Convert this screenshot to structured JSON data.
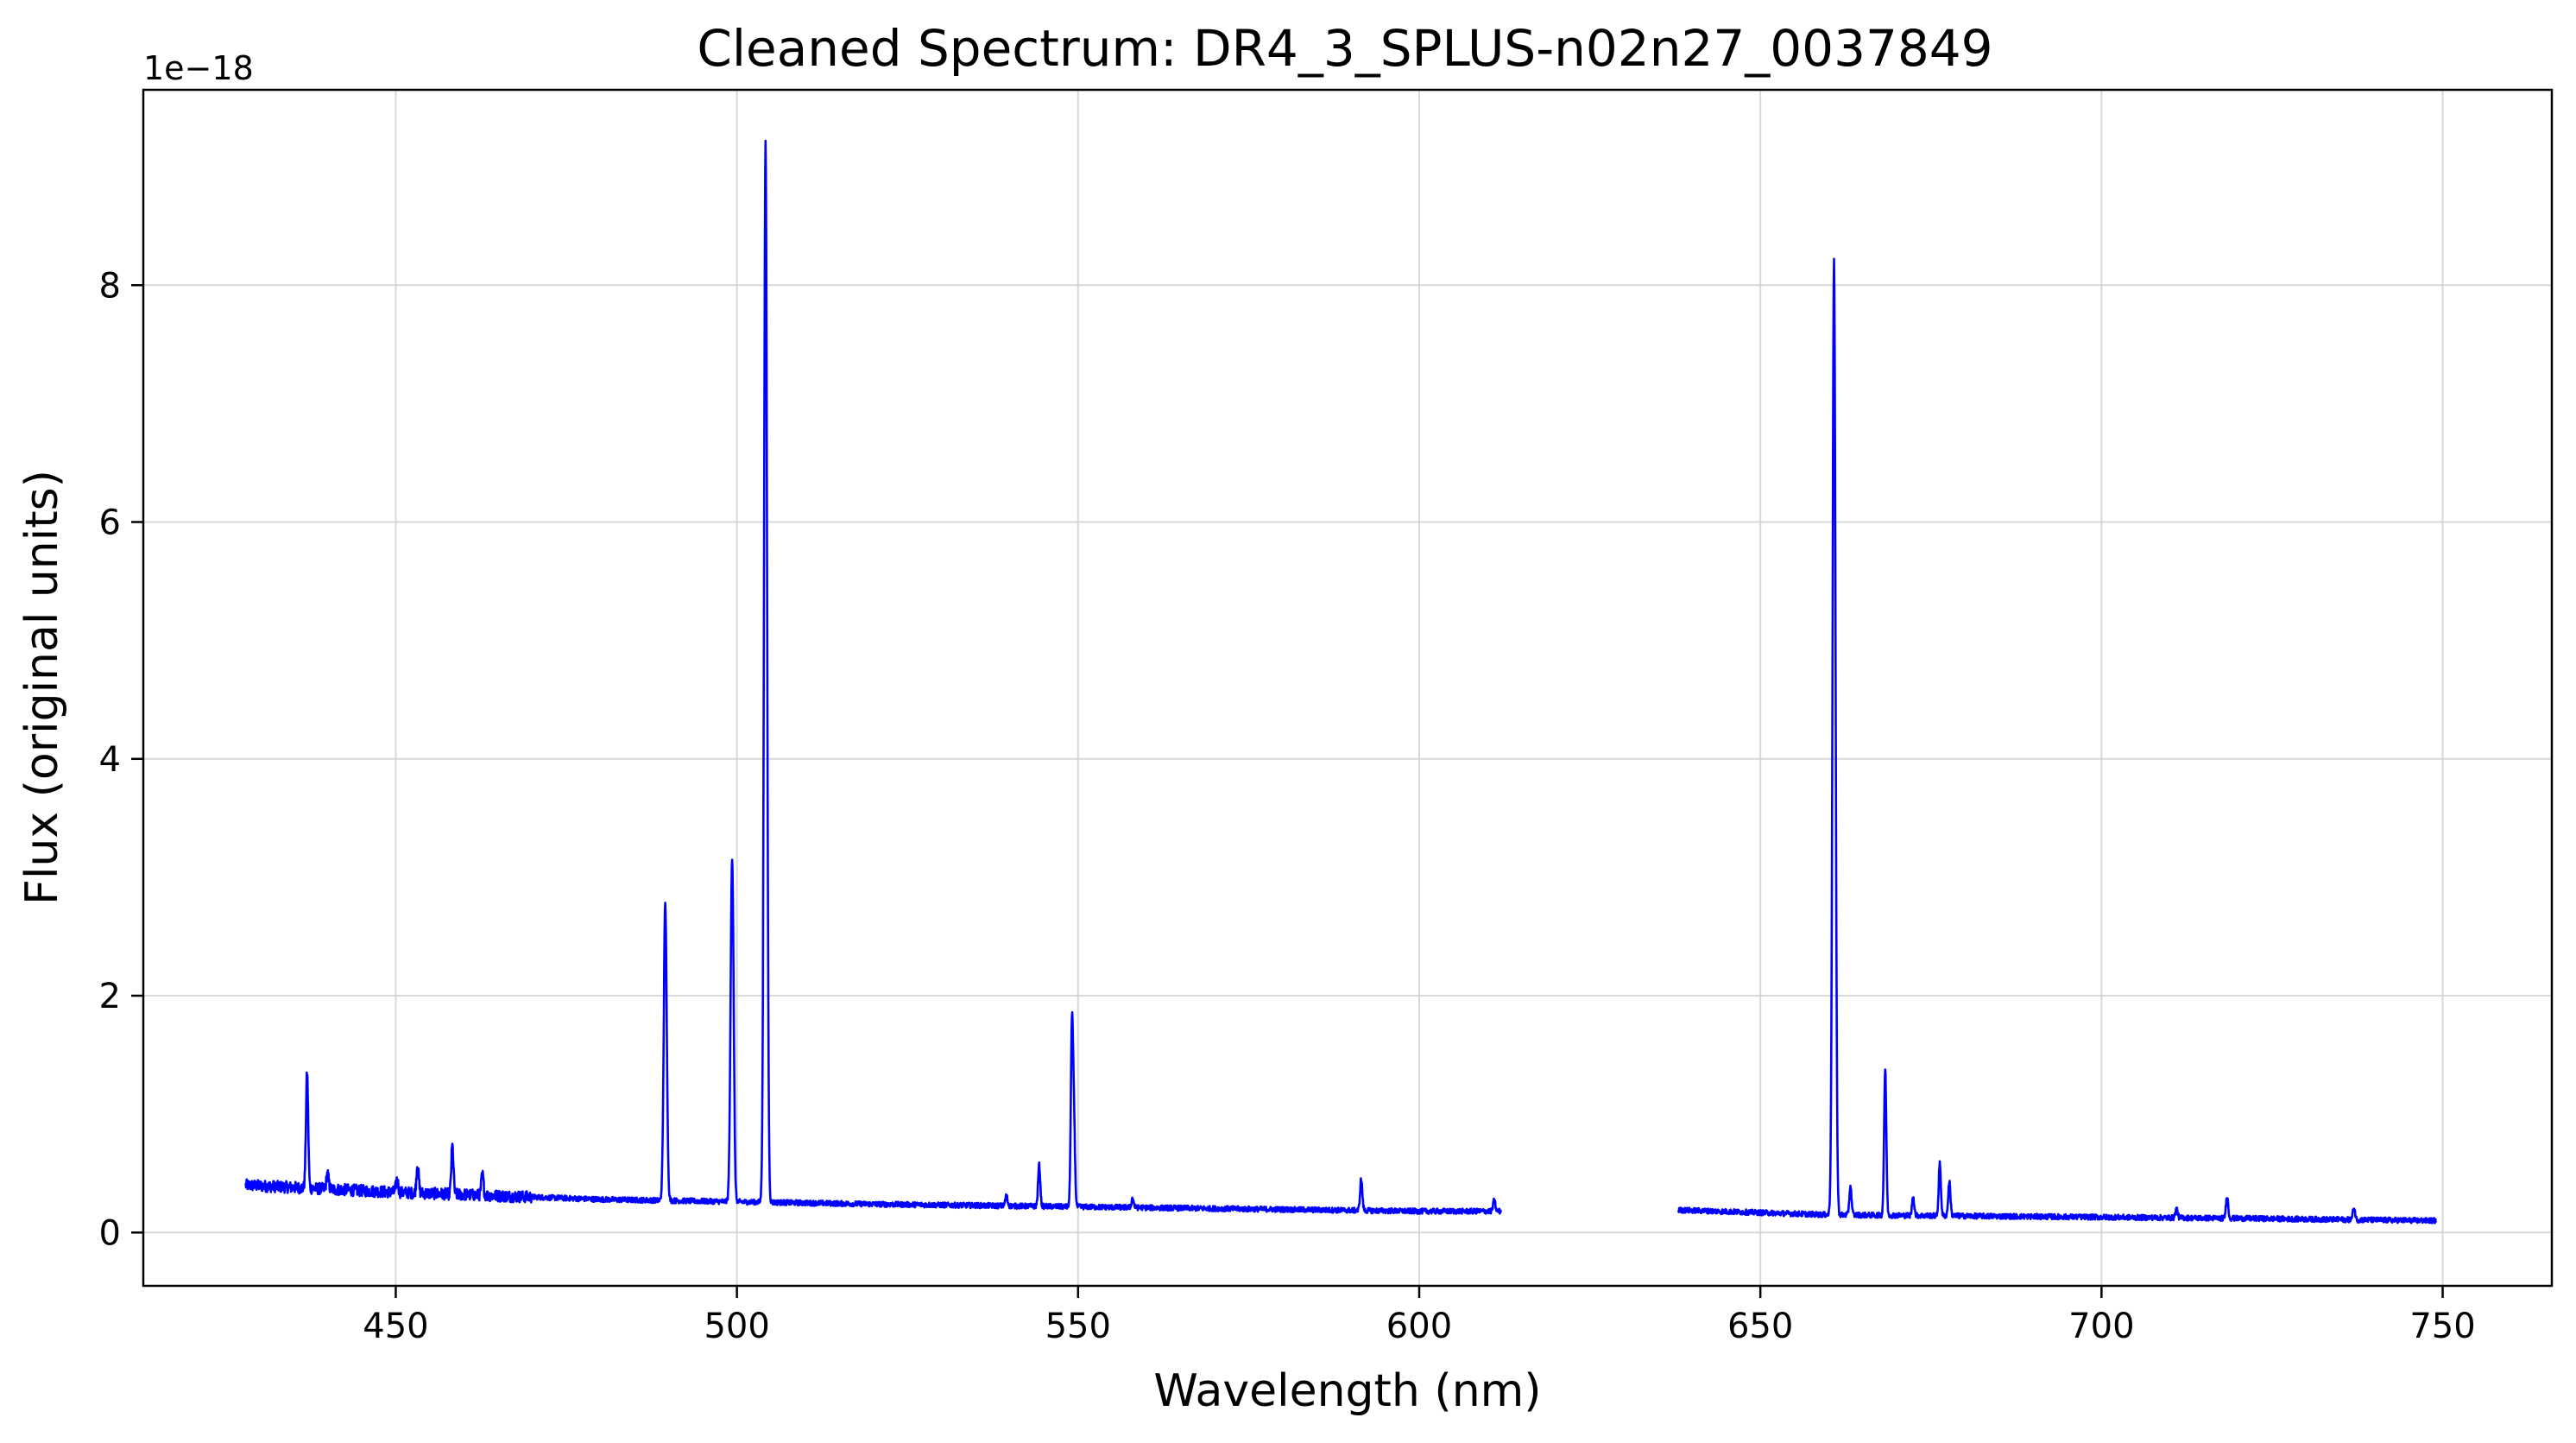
{
  "chart_data": {
    "type": "line",
    "title": "Cleaned Spectrum: DR4_3_SPLUS-n02n27_0037849",
    "xlabel": "Wavelength (nm)",
    "ylabel": "Flux (original units)",
    "y_offset_label": "1e−18",
    "xlim": [
      413,
      766
    ],
    "ylim": [
      -0.45,
      9.65
    ],
    "x_ticks": [
      450,
      500,
      550,
      600,
      650,
      700,
      750
    ],
    "y_ticks": [
      0,
      2,
      4,
      6,
      8
    ],
    "grid": true,
    "line_color": "#0000ff",
    "segments": [
      {
        "x_range": [
          428,
          612
        ],
        "continuum": [
          [
            428,
            0.4
          ],
          [
            450,
            0.34
          ],
          [
            480,
            0.28
          ],
          [
            520,
            0.24
          ],
          [
            560,
            0.21
          ],
          [
            600,
            0.18
          ],
          [
            612,
            0.18
          ]
        ],
        "lines": [
          [
            437.0,
            1.35
          ],
          [
            440.0,
            0.5
          ],
          [
            450.2,
            0.45
          ],
          [
            453.2,
            0.58
          ],
          [
            458.3,
            0.73
          ],
          [
            462.7,
            0.49
          ],
          [
            489.5,
            2.77
          ],
          [
            499.3,
            3.17
          ],
          [
            504.2,
            9.2
          ],
          [
            539.5,
            0.31
          ],
          [
            544.3,
            0.57
          ],
          [
            549.1,
            1.71
          ],
          [
            549.4,
            0.9
          ],
          [
            558.0,
            0.29
          ],
          [
            591.5,
            0.45
          ],
          [
            611.0,
            0.27
          ]
        ]
      },
      {
        "x_range": [
          638,
          749
        ],
        "continuum": [
          [
            638,
            0.19
          ],
          [
            660,
            0.15
          ],
          [
            680,
            0.14
          ],
          [
            700,
            0.13
          ],
          [
            720,
            0.12
          ],
          [
            749,
            0.1
          ]
        ],
        "lines": [
          [
            660.8,
            8.2
          ],
          [
            663.2,
            0.39
          ],
          [
            668.3,
            1.37
          ],
          [
            672.4,
            0.3
          ],
          [
            676.3,
            0.58
          ],
          [
            677.7,
            0.43
          ],
          [
            711.0,
            0.2
          ],
          [
            718.4,
            0.31
          ],
          [
            737.0,
            0.21
          ]
        ]
      }
    ]
  }
}
